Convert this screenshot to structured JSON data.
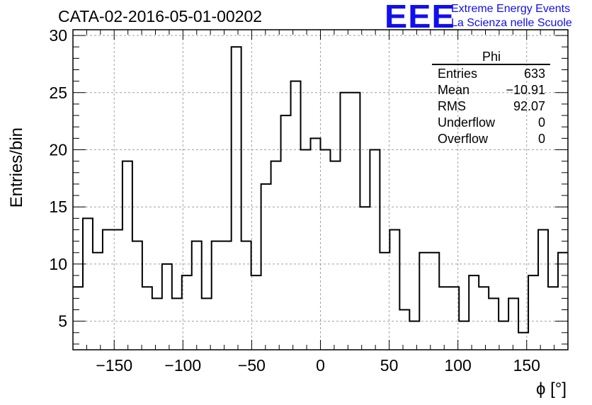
{
  "header": {
    "title": "CATA-02-2016-05-01-00202",
    "logo_text": "EEE",
    "org_line1": "Extreme Energy Events",
    "org_line2": "La Scienza nelle Scuole"
  },
  "colors": {
    "logo": "#1010ee",
    "line": "#000000",
    "grid": "#a0a0a0"
  },
  "stats_box": {
    "title": "Phi",
    "rows": [
      {
        "label": "Entries",
        "value": "633"
      },
      {
        "label": "Mean",
        "value": "−10.91"
      },
      {
        "label": "RMS",
        "value": "92.07"
      },
      {
        "label": "Underflow",
        "value": "0"
      },
      {
        "label": "Overflow",
        "value": "0"
      }
    ]
  },
  "chart_data": {
    "type": "histogram",
    "title": "CATA-02-2016-05-01-00202",
    "xlabel": "ϕ [°]",
    "ylabel": "Entries/bin",
    "xlim": [
      -180,
      180
    ],
    "ylim": [
      2.5,
      30.5
    ],
    "bin_width": 7.2,
    "x_ticks": [
      -150,
      -100,
      -50,
      0,
      50,
      100,
      150
    ],
    "x_tick_labels": [
      "−150",
      "−100",
      "−50",
      "0",
      "50",
      "100",
      "150"
    ],
    "y_ticks": [
      5,
      10,
      15,
      20,
      25,
      30
    ],
    "y_tick_labels": [
      "5",
      "10",
      "15",
      "20",
      "25",
      "30"
    ],
    "grid": true,
    "values": [
      8,
      14,
      11,
      13,
      13,
      19,
      12,
      8,
      7,
      10,
      7,
      9,
      12,
      7,
      12,
      12,
      29,
      12,
      9,
      17,
      19,
      23,
      26,
      20,
      21,
      20,
      19,
      25,
      25,
      15,
      20,
      11,
      13,
      6,
      5,
      11,
      11,
      8,
      8,
      5,
      9,
      8,
      7,
      5,
      7,
      4,
      9,
      13,
      8,
      11
    ]
  }
}
